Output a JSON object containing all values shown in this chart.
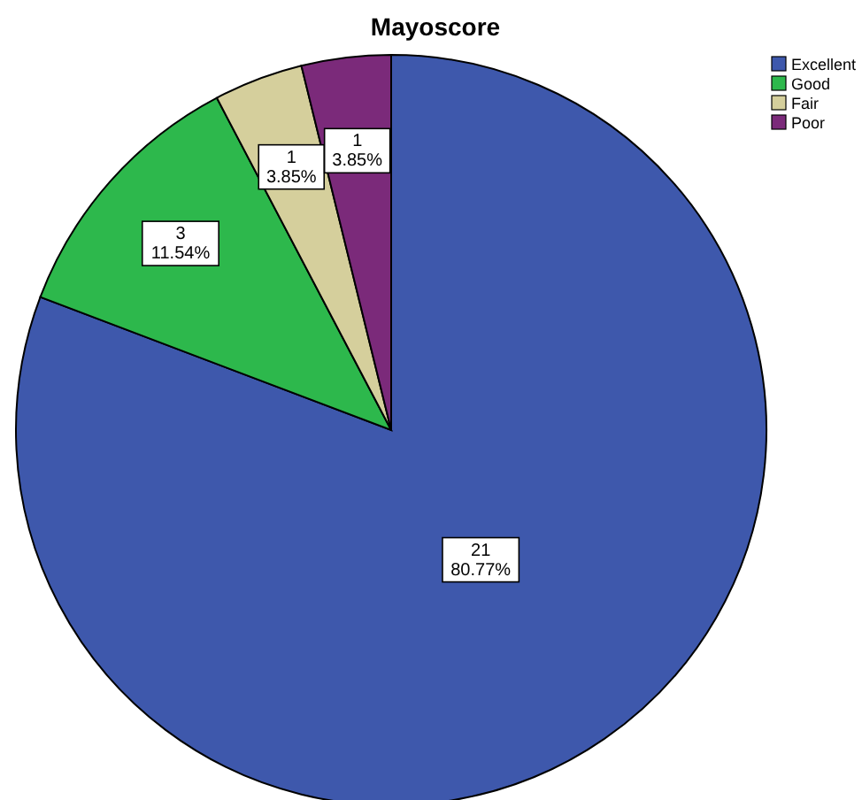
{
  "chart_data": {
    "type": "pie",
    "title": "Mayoscore",
    "categories": [
      "Excellent",
      "Good",
      "Fair",
      "Poor"
    ],
    "values": [
      21,
      3,
      1,
      1
    ],
    "colors": [
      "#3e58ac",
      "#2db84c",
      "#d5cf9c",
      "#7b2a7a"
    ],
    "value_labels": [
      "21\n80.77%",
      "3\n11.54%",
      "1\n3.85%",
      "1\n3.85%"
    ],
    "legend": "top right"
  }
}
